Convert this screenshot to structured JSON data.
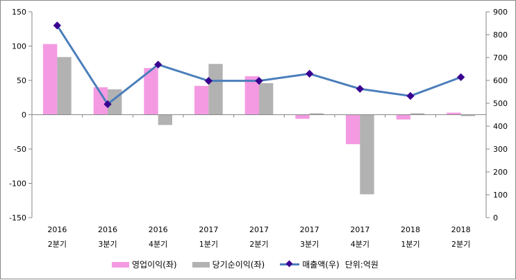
{
  "chart_data": {
    "type": "bar+line",
    "categories": [
      [
        "2016",
        "2분기"
      ],
      [
        "2016",
        "3분기"
      ],
      [
        "2016",
        "4분기"
      ],
      [
        "2017",
        "1분기"
      ],
      [
        "2017",
        "2분기"
      ],
      [
        "2017",
        "3분기"
      ],
      [
        "2017",
        "4분기"
      ],
      [
        "2018",
        "1분기"
      ],
      [
        "2018",
        "2분기"
      ]
    ],
    "series": [
      {
        "name": "영업이익(좌)",
        "type": "bar",
        "axis": "left",
        "color": "#f49ae2",
        "values": [
          103,
          40,
          68,
          42,
          56,
          -6,
          -43,
          -7,
          3
        ]
      },
      {
        "name": "당기순이익(좌)",
        "type": "bar",
        "axis": "left",
        "color": "#b2b2b2",
        "values": [
          84,
          37,
          -15,
          74,
          46,
          2,
          -116,
          2,
          -2
        ]
      },
      {
        "name": "매출액(우)",
        "type": "line",
        "axis": "right",
        "color": "#4a7ebb",
        "marker_color": "#3a0090",
        "values": [
          840,
          496,
          669,
          598,
          598,
          629,
          563,
          532,
          614
        ]
      }
    ],
    "left_axis": {
      "range": [
        -150,
        150
      ],
      "ticks": [
        150,
        100,
        50,
        0,
        -50,
        -100,
        -150
      ]
    },
    "right_axis": {
      "range": [
        0,
        900
      ],
      "ticks": [
        900,
        800,
        700,
        600,
        500,
        400,
        300,
        200,
        100,
        0
      ]
    },
    "unit_note": "단위:억원",
    "legend_position": "bottom"
  }
}
